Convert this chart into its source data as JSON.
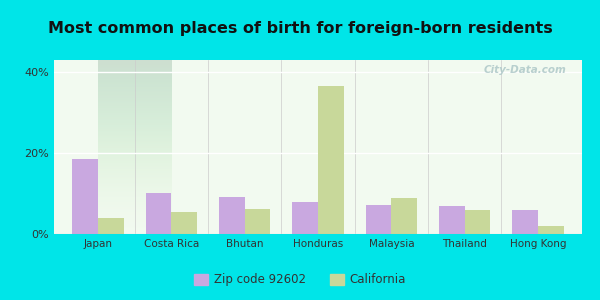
{
  "title": "Most common places of birth for foreign-born residents",
  "categories": [
    "Japan",
    "Costa Rica",
    "Bhutan",
    "Honduras",
    "Malaysia",
    "Thailand",
    "Hong Kong"
  ],
  "zip_values": [
    18.5,
    10.2,
    9.2,
    8.0,
    7.2,
    7.0,
    6.0
  ],
  "ca_values": [
    4.0,
    5.5,
    6.2,
    36.5,
    9.0,
    6.0,
    2.0
  ],
  "zip_color": "#c9a8e0",
  "ca_color": "#c8d89a",
  "background_outer": "#00e5e8",
  "background_inner": "#f2faf0",
  "yticks": [
    0,
    20,
    40
  ],
  "ylim": [
    0,
    43
  ],
  "zip_label": "Zip code 92602",
  "ca_label": "California",
  "title_fontsize": 11.5,
  "bar_width": 0.35,
  "watermark": "City-Data.com"
}
